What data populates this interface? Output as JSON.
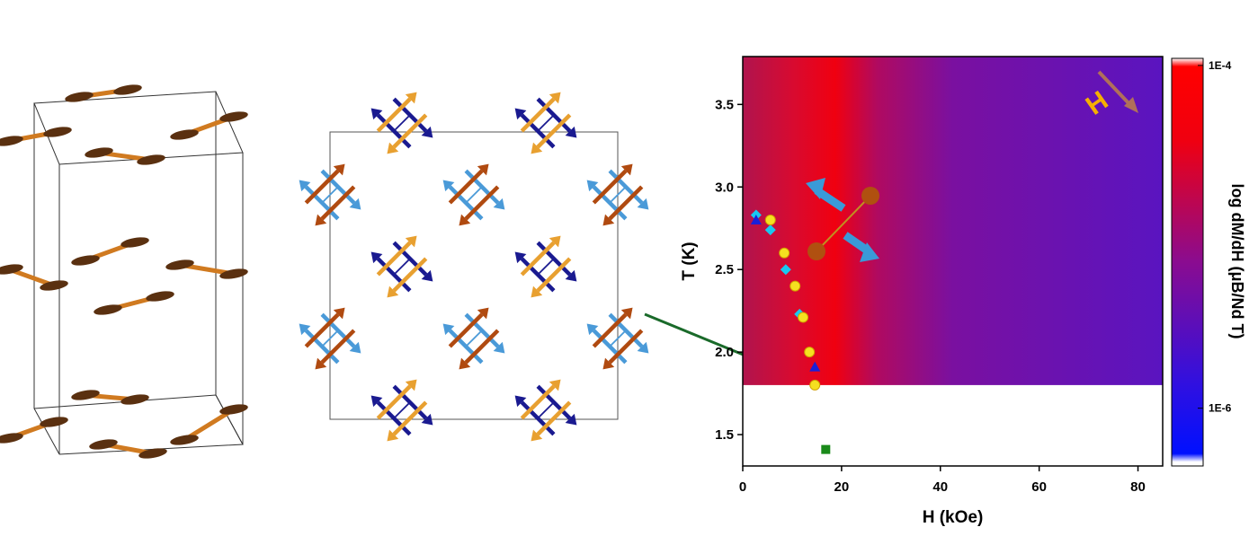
{
  "chart_data": {
    "type": "scatter",
    "xlabel": "H (kOe)",
    "ylabel": "T (K)",
    "xlim": [
      0,
      85
    ],
    "ylim": [
      1.31,
      3.79
    ],
    "xticks": [
      0,
      20,
      40,
      60,
      80
    ],
    "yticks": [
      1.5,
      {
        "value": 2,
        "label": "2.0"
      },
      2.5,
      {
        "value": 3,
        "label": "3.0"
      },
      3.5
    ],
    "heatmap": {
      "ymin": 1.8
    },
    "colorbar": {
      "label": "log dM/dH (μB/Nd T)",
      "log": true,
      "lim": [
        4.6e-07,
        0.00011
      ],
      "ticks": [
        {
          "value": 0.0001,
          "label": "1E-4"
        },
        {
          "value": 1e-06,
          "label": "1E-6"
        }
      ]
    },
    "field_label": "H",
    "series": [
      {
        "marker": "diamond",
        "color": "#19c8f0",
        "x": [
          2.7,
          5.6,
          8.7,
          11.5
        ],
        "values": [
          2.83,
          2.74,
          2.5,
          2.23
        ]
      },
      {
        "marker": "circle",
        "color": "#f5e020",
        "x": [
          5.6,
          8.4,
          10.6,
          12.2,
          13.5,
          14.6
        ],
        "values": [
          2.8,
          2.6,
          2.4,
          2.21,
          2.0,
          1.8
        ]
      },
      {
        "marker": "triangle",
        "color": "#1a20d8",
        "x": [
          2.7,
          14.6
        ],
        "values": [
          2.8,
          1.91
        ]
      },
      {
        "marker": "square",
        "color": "#1a8a1a",
        "x": [
          16.8
        ],
        "values": [
          1.41
        ]
      }
    ]
  }
}
